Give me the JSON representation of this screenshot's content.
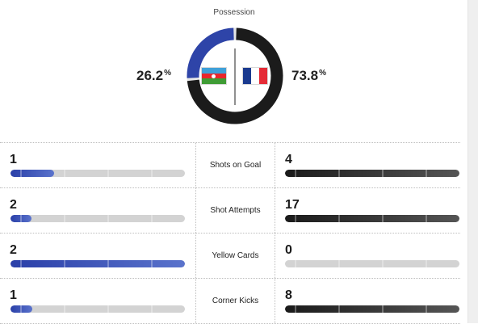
{
  "possession": {
    "title": "Possession",
    "home": {
      "percent": "26.2",
      "value": 0.262,
      "flag_icon": "azerbaijan-flag-icon",
      "color": "#2e44a8"
    },
    "away": {
      "percent": "73.8",
      "value": 0.738,
      "flag_icon": "france-flag-icon",
      "color": "#1b1b1b"
    },
    "percent_symbol": "%"
  },
  "stats": [
    {
      "label": "Shots on Goal",
      "home": "1",
      "away": "4",
      "home_fraction": 0.25,
      "away_fraction": 1.0
    },
    {
      "label": "Shot Attempts",
      "home": "2",
      "away": "17",
      "home_fraction": 0.12,
      "away_fraction": 1.0
    },
    {
      "label": "Yellow Cards",
      "home": "2",
      "away": "0",
      "home_fraction": 1.0,
      "away_fraction": 0.0
    },
    {
      "label": "Corner Kicks",
      "home": "1",
      "away": "8",
      "home_fraction": 0.125,
      "away_fraction": 1.0
    }
  ]
}
